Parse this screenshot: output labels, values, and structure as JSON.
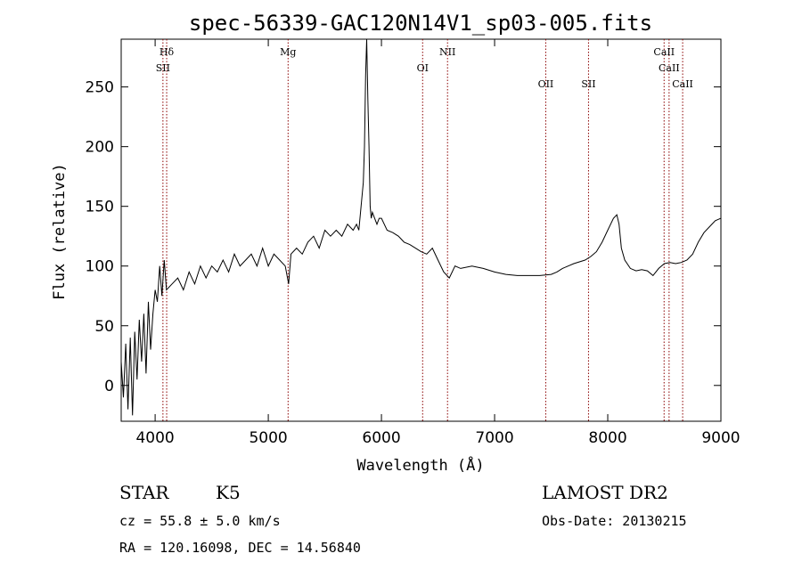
{
  "chart_data": {
    "type": "line",
    "title": "spec-56339-GAC120N14V1_sp03-005.fits",
    "xlabel": "Wavelength (Å)",
    "ylabel": "Flux (relative)",
    "xlim": [
      3700,
      9000
    ],
    "ylim": [
      -30,
      290
    ],
    "xticks": [
      4000,
      5000,
      6000,
      7000,
      8000,
      9000
    ],
    "yticks": [
      0,
      50,
      100,
      150,
      200,
      250
    ],
    "xtick_labels": [
      "4000",
      "5000",
      "6000",
      "7000",
      "8000",
      "9000"
    ],
    "ytick_labels": [
      "0",
      "50",
      "100",
      "150",
      "200",
      "250"
    ],
    "line_color": "#000000",
    "marker_color": "#8b0000",
    "series": [
      {
        "x": [
          3700,
          3720,
          3740,
          3760,
          3780,
          3800,
          3820,
          3840,
          3860,
          3880,
          3900,
          3920,
          3940,
          3960,
          3980,
          4000,
          4020,
          4040,
          4060,
          4080,
          4100,
          4150,
          4200,
          4250,
          4300,
          4350,
          4400,
          4450,
          4500,
          4550,
          4600,
          4650,
          4700,
          4750,
          4800,
          4850,
          4900,
          4950,
          5000,
          5050,
          5100,
          5150,
          5180,
          5200,
          5250,
          5300,
          5350,
          5400,
          5450,
          5500,
          5550,
          5600,
          5650,
          5700,
          5750,
          5780,
          5800,
          5820,
          5840,
          5850,
          5860,
          5870,
          5880,
          5890,
          5900,
          5910,
          5920,
          5940,
          5960,
          5980,
          6000,
          6050,
          6100,
          6150,
          6200,
          6250,
          6300,
          6350,
          6400,
          6450,
          6500,
          6550,
          6600,
          6650,
          6700,
          6800,
          6900,
          7000,
          7100,
          7200,
          7300,
          7400,
          7500,
          7550,
          7600,
          7650,
          7700,
          7800,
          7850,
          7900,
          7950,
          8000,
          8050,
          8080,
          8100,
          8120,
          8150,
          8200,
          8250,
          8300,
          8350,
          8400,
          8450,
          8500,
          8550,
          8600,
          8650,
          8700,
          8750,
          8800,
          8850,
          8900,
          8950,
          9000
        ],
        "y": [
          20,
          -10,
          35,
          -20,
          40,
          -25,
          45,
          5,
          55,
          20,
          60,
          10,
          70,
          30,
          60,
          80,
          70,
          100,
          75,
          105,
          80,
          85,
          90,
          80,
          95,
          85,
          100,
          90,
          100,
          95,
          105,
          95,
          110,
          100,
          105,
          110,
          100,
          115,
          100,
          110,
          105,
          100,
          85,
          110,
          115,
          110,
          120,
          125,
          115,
          130,
          125,
          130,
          125,
          135,
          130,
          135,
          130,
          150,
          170,
          200,
          260,
          290,
          240,
          200,
          150,
          140,
          145,
          140,
          135,
          140,
          140,
          130,
          128,
          125,
          120,
          118,
          115,
          112,
          110,
          115,
          105,
          95,
          90,
          100,
          98,
          100,
          98,
          95,
          93,
          92,
          92,
          92,
          93,
          95,
          98,
          100,
          102,
          105,
          108,
          112,
          120,
          130,
          140,
          143,
          135,
          115,
          105,
          98,
          96,
          97,
          96,
          92,
          98,
          102,
          103,
          102,
          103,
          105,
          110,
          120,
          128,
          133,
          138,
          140
        ]
      }
    ],
    "spectral_lines": [
      {
        "label": "Hδ",
        "x": 4102
      },
      {
        "label": "SII",
        "x": 4069
      },
      {
        "label": "Mg",
        "x": 5175
      },
      {
        "label": "OI",
        "x": 6364
      },
      {
        "label": "NII",
        "x": 6584
      },
      {
        "label": "OII",
        "x": 7452
      },
      {
        "label": "SII",
        "x": 7830
      },
      {
        "label": "CaII",
        "x": 8498
      },
      {
        "label": "CaII",
        "x": 8542
      },
      {
        "label": "CaII",
        "x": 8662
      }
    ]
  },
  "info": {
    "object_type": "STAR",
    "subclass": "K5",
    "survey": "LAMOST DR2",
    "cz": "cz = 55.8 ± 5.0 km/s",
    "obs_date": "Obs-Date: 20130215",
    "coords": "RA = 120.16098, DEC =  14.56840"
  }
}
